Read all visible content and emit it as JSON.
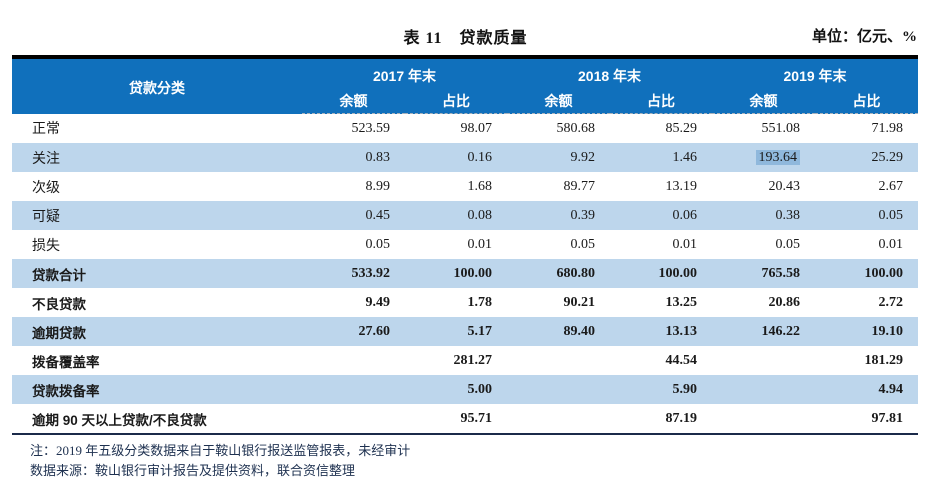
{
  "title": "表 11　贷款质量",
  "unit_label": "单位：亿元、%",
  "table": {
    "corner_header": "贷款分类",
    "year_headers": [
      "2017 年末",
      "2018 年末",
      "2019 年末"
    ],
    "sub_headers": [
      "余额",
      "占比"
    ],
    "rows": [
      {
        "label": "正常",
        "bold": false,
        "values": [
          "523.59",
          "98.07",
          "580.68",
          "85.29",
          "551.08",
          "71.98"
        ]
      },
      {
        "label": "关注",
        "bold": false,
        "values": [
          "0.83",
          "0.16",
          "9.92",
          "1.46",
          "193.64",
          "25.29"
        ],
        "highlight_cell": 4
      },
      {
        "label": "次级",
        "bold": false,
        "values": [
          "8.99",
          "1.68",
          "89.77",
          "13.19",
          "20.43",
          "2.67"
        ]
      },
      {
        "label": "可疑",
        "bold": false,
        "values": [
          "0.45",
          "0.08",
          "0.39",
          "0.06",
          "0.38",
          "0.05"
        ]
      },
      {
        "label": "损失",
        "bold": false,
        "values": [
          "0.05",
          "0.01",
          "0.05",
          "0.01",
          "0.05",
          "0.01"
        ]
      },
      {
        "label": "贷款合计",
        "bold": true,
        "values": [
          "533.92",
          "100.00",
          "680.80",
          "100.00",
          "765.58",
          "100.00"
        ]
      },
      {
        "label": "不良贷款",
        "bold": true,
        "values": [
          "9.49",
          "1.78",
          "90.21",
          "13.25",
          "20.86",
          "2.72"
        ]
      },
      {
        "label": "逾期贷款",
        "bold": true,
        "values": [
          "27.60",
          "5.17",
          "89.40",
          "13.13",
          "146.22",
          "19.10"
        ]
      },
      {
        "label": "拨备覆盖率",
        "bold": true,
        "values": [
          "",
          "281.27",
          "",
          "44.54",
          "",
          "181.29"
        ]
      },
      {
        "label": "贷款拨备率",
        "bold": true,
        "values": [
          "",
          "5.00",
          "",
          "5.90",
          "",
          "4.94"
        ]
      },
      {
        "label": "逾期 90 天以上贷款/不良贷款",
        "bold": true,
        "values": [
          "",
          "95.71",
          "",
          "87.19",
          "",
          "97.81"
        ]
      }
    ]
  },
  "notes": [
    "注：2019 年五级分类数据来自于鞍山银行报送监管报表，未经审计",
    "数据来源：鞍山银行审计报告及提供资料，联合资信整理"
  ],
  "colors": {
    "header_bg": "#1070bc",
    "row_alt_bg": "#bdd6ec",
    "highlight_bg": "#8fb8dc"
  }
}
